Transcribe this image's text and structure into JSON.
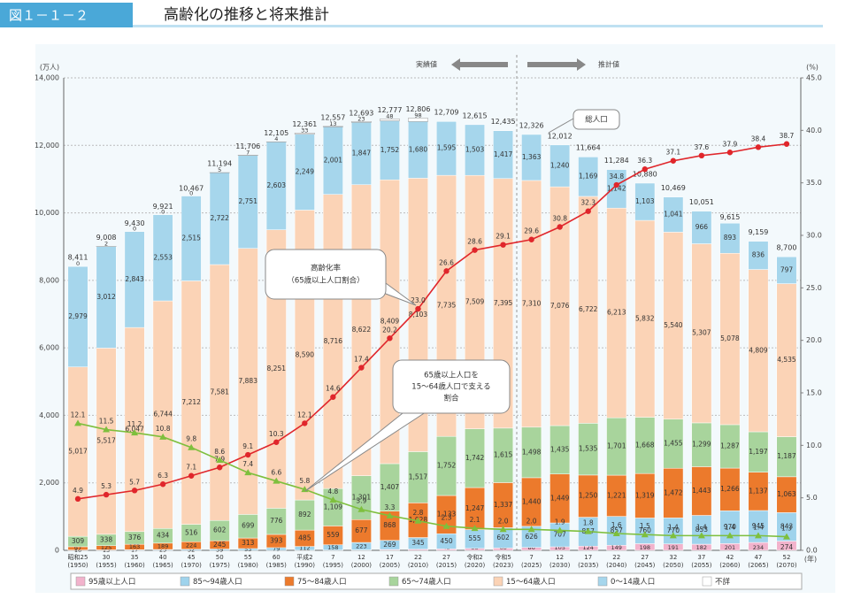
{
  "header": {
    "figure_no": "図１－１－２",
    "title": "高齢化の推移と将来推計"
  },
  "chart_data": {
    "type": "bar",
    "ylabel": "(万人)",
    "y2label": "(%)",
    "xlabel": "(年)",
    "ylim": [
      0,
      14000
    ],
    "yticks": [
      0,
      {
        "value": 2000,
        "label": "2,000"
      },
      {
        "value": 4000,
        "label": "4,000"
      },
      {
        "value": 6000,
        "label": "6,000"
      },
      {
        "value": 8000,
        "label": "8,000"
      },
      {
        "value": 10000,
        "label": "10,000"
      },
      {
        "value": 12000,
        "label": "12,000"
      },
      {
        "value": 14000,
        "label": "14,000"
      }
    ],
    "y2lim": [
      0,
      45
    ],
    "y2ticks": [
      {
        "value": 0,
        "label": "0.0"
      },
      {
        "value": 5,
        "label": "5.0"
      },
      {
        "value": 10,
        "label": "10.0"
      },
      {
        "value": 15,
        "label": "15.0"
      },
      {
        "value": 20,
        "label": "20.0"
      },
      {
        "value": 25,
        "label": "25.0"
      },
      {
        "value": 30,
        "label": "30.0"
      },
      {
        "value": 35,
        "label": "35.0"
      },
      {
        "value": 40,
        "label": "40.0"
      },
      {
        "value": 45,
        "label": "45.0"
      }
    ],
    "grid": true,
    "categories": [
      "昭和25",
      "30",
      "35",
      "40",
      "45",
      "50",
      "55",
      "60",
      "平成2",
      "7",
      "12",
      "17",
      "22",
      "27",
      "令和2",
      "令和5",
      "7",
      "12",
      "17",
      "22",
      "27",
      "32",
      "37",
      "42",
      "47",
      "52"
    ],
    "category_years": [
      "(1950)",
      "(1955)",
      "(1960)",
      "(1965)",
      "(1970)",
      "(1975)",
      "(1980)",
      "(1985)",
      "(1990)",
      "(1995)",
      "(2000)",
      "(2005)",
      "(2010)",
      "(2015)",
      "(2020)",
      "(2023)",
      "(2025)",
      "(2030)",
      "(2035)",
      "(2040)",
      "(2045)",
      "(2050)",
      "(2055)",
      "(2060)",
      "(2065)",
      "(2070)"
    ],
    "series": [
      {
        "name": "95歳以上人口",
        "color": "#f2b3cc",
        "values": [
          null,
          null,
          null,
          null,
          null,
          null,
          null,
          null,
          3,
          6,
          11,
          25,
          34,
          42,
          58,
          68,
          86,
          105,
          124,
          149,
          198,
          191,
          182,
          201,
          234,
          274
        ]
      },
      {
        "name": "85～94歳人口",
        "color": "#9fd3ec",
        "values": [
          10,
          13,
          17,
          25,
          32,
          39,
          53,
          79,
          112,
          158,
          223,
          269,
          345,
          450,
          555,
          602,
          626,
          707,
          857,
          857,
          760,
          770,
          853,
          970,
          945,
          843
        ]
      },
      {
        "name": "75～84歳人口",
        "color": "#ec7a2c",
        "values": [
          97,
          125,
          163,
          189,
          224,
          245,
          313,
          393,
          485,
          559,
          677,
          868,
          1028,
          1133,
          1247,
          1337,
          1440,
          1449,
          1250,
          1221,
          1319,
          1472,
          1443,
          1266,
          1137,
          1063
        ],
        "value_labels": [
          "97",
          "125",
          "163",
          "189",
          "224",
          "245",
          "313",
          "393",
          "485",
          "559",
          "677",
          "868",
          "1,028",
          "1,133",
          "1,247",
          "1,337",
          "1,440",
          "1,449",
          "1,250",
          "1,221",
          "1,319",
          "1,472",
          "1,443",
          "1,266",
          "1,137",
          "1,063"
        ]
      },
      {
        "name": "65～74歳人口",
        "color": "#a8d49c",
        "values": [
          309,
          338,
          376,
          434,
          516,
          602,
          699,
          776,
          892,
          1109,
          1301,
          1407,
          1517,
          1752,
          1742,
          1615,
          1498,
          1435,
          1535,
          1701,
          1668,
          1455,
          1299,
          1287,
          1197,
          1187
        ],
        "value_labels": [
          "309",
          "338",
          "376",
          "434",
          "516",
          "602",
          "699",
          "776",
          "892",
          "1,109",
          "1,301",
          "1,407",
          "1,517",
          "1,752",
          "1,742",
          "1,615",
          "1,498",
          "1,435",
          "1,535",
          "1,701",
          "1,668",
          "1,455",
          "1,299",
          "1,287",
          "1,197",
          "1,187"
        ]
      },
      {
        "name": "15～64歳人口",
        "color": "#fbd3b6",
        "values": [
          5017,
          5517,
          6047,
          6744,
          7212,
          7581,
          7883,
          8251,
          8590,
          8716,
          8622,
          8409,
          8103,
          7735,
          7509,
          7395,
          7310,
          7076,
          6722,
          6213,
          5832,
          5540,
          5307,
          5078,
          4809,
          4535
        ],
        "value_labels": [
          "5,017",
          "5,517",
          "6,047",
          "6,744",
          "7,212",
          "7,581",
          "7,883",
          "8,251",
          "8,590",
          "8,716",
          "8,622",
          "8,409",
          "8,103",
          "7,735",
          "7,509",
          "7,395",
          "7,310",
          "7,076",
          "6,722",
          "6,213",
          "5,832",
          "5,540",
          "5,307",
          "5,078",
          "4,809",
          "4,535"
        ]
      },
      {
        "name": "0～14歳人口",
        "color": "#a6d6ec",
        "values": [
          2979,
          3012,
          2843,
          2553,
          2515,
          2722,
          2751,
          2603,
          2249,
          2001,
          1847,
          1752,
          1680,
          1595,
          1503,
          1417,
          1363,
          1240,
          1169,
          1142,
          1103,
          1041,
          966,
          893,
          836,
          797
        ],
        "value_labels": [
          "2,979",
          "3,012",
          "2,843",
          "2,553",
          "2,515",
          "2,722",
          "2,751",
          "2,603",
          "2,249",
          "2,001",
          "1,847",
          "1,752",
          "1,680",
          "1,595",
          "1,503",
          "1,417",
          "1,363",
          "1,240",
          "1,169",
          "1,142",
          "1,103",
          "1,041",
          "966",
          "893",
          "836",
          "797"
        ]
      },
      {
        "name": "不詳",
        "color": "#ffffff",
        "values": [
          0,
          2,
          0,
          0,
          0,
          5,
          7,
          4,
          33,
          13,
          23,
          48,
          98,
          null,
          null,
          null,
          null,
          null,
          null,
          null,
          null,
          null,
          null,
          null,
          null,
          null
        ]
      }
    ],
    "totals": {
      "values": [
        8411,
        9008,
        9430,
        9921,
        10467,
        11194,
        11706,
        12105,
        12361,
        12557,
        12693,
        12777,
        12806,
        12709,
        12615,
        12435,
        12326,
        12012,
        11664,
        11284,
        10880,
        10469,
        10051,
        9615,
        9159,
        8700
      ],
      "value_labels": [
        "8,411",
        "9,008",
        "9,430",
        "9,921",
        "10,467",
        "11,194",
        "11,706",
        "12,105",
        "12,361",
        "12,557",
        "12,693",
        "12,777",
        "12,806",
        "12,709",
        "12,615",
        "12,435",
        "12,326",
        "12,012",
        "11,664",
        "11,284",
        "10,880",
        "10,469",
        "10,051",
        "9,615",
        "9,159",
        "8,700"
      ]
    },
    "lines": [
      {
        "name": "高齢化率",
        "color": "#e0262b",
        "marker": "circle",
        "axis": "y2",
        "values": [
          4.9,
          5.3,
          5.7,
          6.3,
          7.1,
          7.9,
          9.1,
          10.3,
          12.1,
          14.6,
          17.4,
          20.2,
          23.0,
          26.6,
          28.6,
          29.1,
          29.6,
          30.8,
          32.3,
          34.8,
          36.3,
          37.1,
          37.6,
          37.9,
          38.4,
          38.7
        ],
        "value_labels": [
          "4.9",
          "5.3",
          "5.7",
          "6.3",
          "7.1",
          "7.9",
          "9.1",
          "10.3",
          "12.1",
          "14.6",
          "17.4",
          "20.2",
          "23.0",
          "26.6",
          "28.6",
          "29.1",
          "29.6",
          "30.8",
          "32.3",
          "34.8",
          "36.3",
          "37.1",
          "37.6",
          "37.9",
          "38.4",
          "38.7"
        ]
      },
      {
        "name": "支える割合",
        "color": "#7ebf3d",
        "marker": "triangle",
        "axis": "y2",
        "values": [
          12.1,
          11.5,
          11.2,
          10.8,
          9.8,
          8.6,
          7.4,
          6.6,
          5.8,
          4.8,
          3.9,
          3.3,
          2.8,
          2.3,
          2.1,
          2.0,
          2.0,
          1.9,
          1.8,
          1.6,
          1.5,
          1.4,
          1.4,
          1.4,
          1.4,
          1.3
        ],
        "value_labels": [
          "12.1",
          "11.5",
          "11.2",
          "10.8",
          "9.8",
          "8.6",
          "7.4",
          "6.6",
          "5.8",
          "4.8",
          "3.9",
          "3.3",
          "2.8",
          "2.3",
          "2.1",
          "2.0",
          "2.0",
          "1.9",
          "1.8",
          "1.6",
          "1.5",
          "1.4",
          "1.4",
          "1.4",
          "1.4",
          "1.3"
        ]
      }
    ],
    "annotations": {
      "actual": "実績値",
      "projected": "推計値",
      "total": "総人口",
      "aging_rate": [
        "高齢化率",
        "（65歳以上人口割合）"
      ],
      "support": [
        "65歳以上人口を",
        "15～64歳人口で支える",
        "割合"
      ]
    }
  }
}
